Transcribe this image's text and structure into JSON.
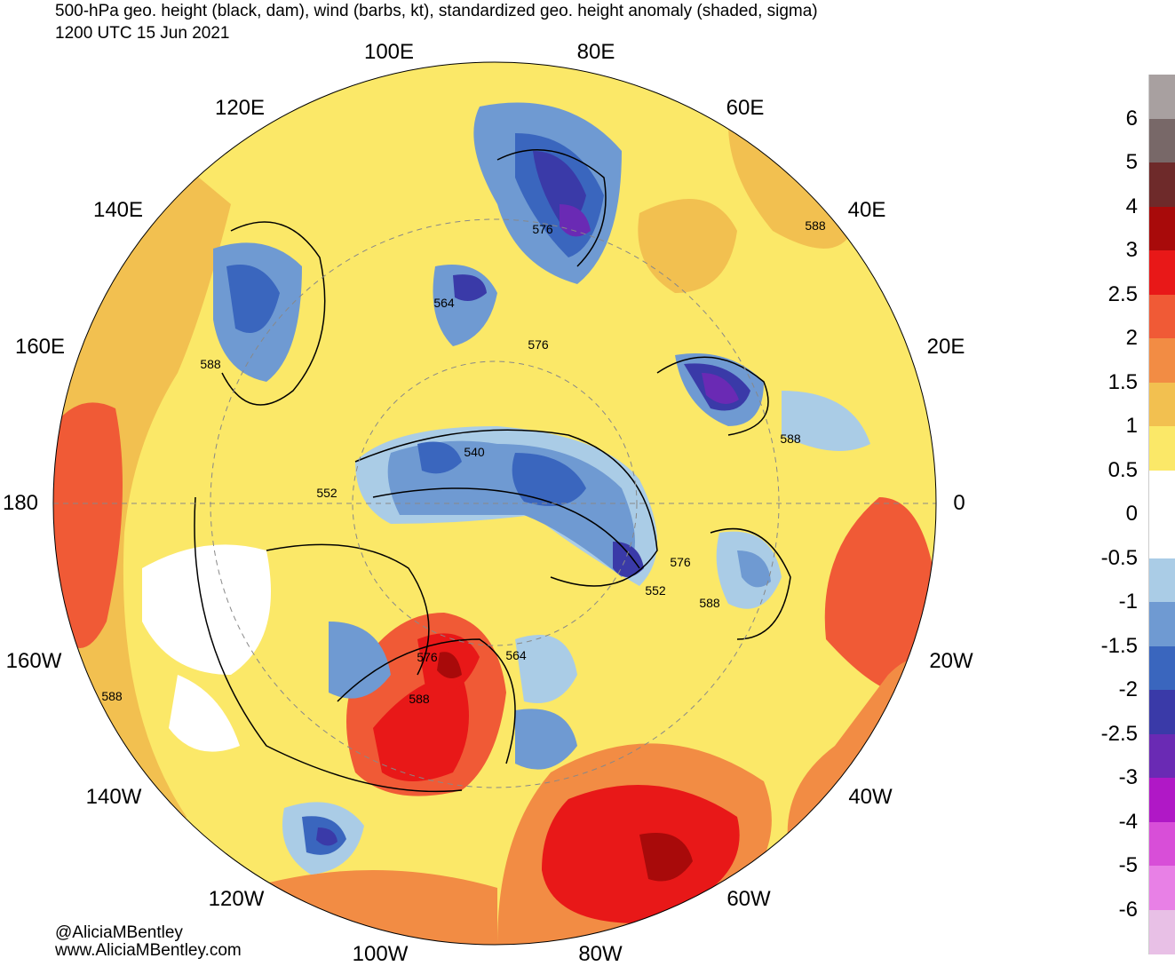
{
  "title": {
    "line1": "500-hPa geo. height (black, dam), wind (barbs, kt), standardized geo. height anomaly (shaded, sigma)",
    "line2": "1200 UTC 15 Jun 2021"
  },
  "longitude_labels": {
    "e100": "100E",
    "e80": "80E",
    "e120": "120E",
    "e60": "60E",
    "e140": "140E",
    "e40": "40E",
    "e160": "160E",
    "e20": "20E",
    "l180": "180",
    "l0": "0",
    "w160": "160W",
    "w20": "20W",
    "w140": "140W",
    "w40": "40W",
    "w120": "120W",
    "w60": "60W",
    "w100": "100W",
    "w80": "80W"
  },
  "contour_labels": {
    "c576a": "576",
    "c564a": "564",
    "c588a": "588",
    "c576b": "576",
    "c588b": "588",
    "c540": "540",
    "c588c": "588",
    "c552a": "552",
    "c576c": "576",
    "c552b": "552",
    "c588d": "588",
    "c576d": "576",
    "c564b": "564",
    "c588e": "588",
    "c588f": "588"
  },
  "credits": {
    "handle": "@AliciaMBentley",
    "site": "www.AliciaMBentley.com"
  },
  "colorbar": {
    "labels": [
      "6",
      "5",
      "4",
      "3",
      "2.5",
      "2",
      "1.5",
      "1",
      "0.5",
      "0",
      "-0.5",
      "-1",
      "-1.5",
      "-2",
      "-2.5",
      "-3",
      "-4",
      "-5",
      "-6"
    ],
    "colors": [
      "#a8a0a0",
      "#786868",
      "#6e2a2a",
      "#a80a0a",
      "#e81818",
      "#f05a36",
      "#f28c44",
      "#f2c050",
      "#fbe868",
      "#ffffff",
      "#ffffff",
      "#aacce6",
      "#6f9ad2",
      "#3a66be",
      "#3a3aa8",
      "#6a2ab4",
      "#b018c6",
      "#d84ed8",
      "#e880e6",
      "#e8c0e6"
    ]
  },
  "colors": {
    "pos_weak": "#fbe868",
    "pos_mod": "#f2c050",
    "pos_orange": "#f28c44",
    "pos_strong": "#f05a36",
    "pos_red": "#e81818",
    "pos_dark": "#a80a0a",
    "neg_weak": "#aacce6",
    "neg_mod": "#6f9ad2",
    "neg_strong": "#3a66be",
    "neg_deep": "#3a3aa8",
    "neg_purple": "#6a2ab4",
    "land_gray": "#c8c8c8"
  }
}
